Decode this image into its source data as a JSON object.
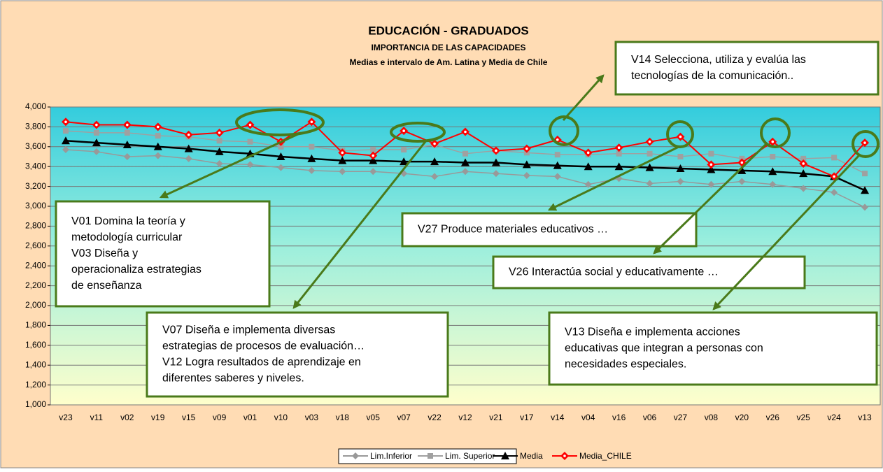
{
  "chart_data": {
    "type": "line",
    "title": "EDUCACIÓN  - GRADUADOS",
    "subtitle": "IMPORTANCIA DE LAS CAPACIDADES",
    "subtitle_2": "Medias e intervalo de Am. Latina y Media de Chile",
    "categories": [
      "v23",
      "v11",
      "v02",
      "v19",
      "v15",
      "v09",
      "v01",
      "v10",
      "v03",
      "v18",
      "v05",
      "v07",
      "v22",
      "v12",
      "v21",
      "v17",
      "v14",
      "v04",
      "v16",
      "v06",
      "v27",
      "v08",
      "v20",
      "v26",
      "v25",
      "v24",
      "v13"
    ],
    "ylim": [
      1000,
      4000
    ],
    "yticks": [
      {
        "value": 1000,
        "label": "1,000"
      },
      {
        "value": 1200,
        "label": "1,200"
      },
      {
        "value": 1400,
        "label": "1,400"
      },
      {
        "value": 1600,
        "label": "1,600"
      },
      {
        "value": 1800,
        "label": "1,800"
      },
      {
        "value": 2000,
        "label": "2,000"
      },
      {
        "value": 2200,
        "label": "2,200"
      },
      {
        "value": 2400,
        "label": "2,400"
      },
      {
        "value": 2600,
        "label": "2,600"
      },
      {
        "value": 2800,
        "label": "2,800"
      },
      {
        "value": 3000,
        "label": "3,000"
      },
      {
        "value": 3200,
        "label": "3,200"
      },
      {
        "value": 3400,
        "label": "3,400"
      },
      {
        "value": 3600,
        "label": "3,600"
      },
      {
        "value": 3800,
        "label": "3,800"
      },
      {
        "value": 4000,
        "label": "4,000"
      }
    ],
    "grid": true,
    "legend": "bottom",
    "series": [
      {
        "name": "Lim.Inferior",
        "color": "#999999",
        "marker": "diamond",
        "values": [
          3570,
          3550,
          3500,
          3510,
          3480,
          3430,
          3420,
          3390,
          3360,
          3350,
          3350,
          3330,
          3300,
          3350,
          3330,
          3310,
          3300,
          3220,
          3280,
          3230,
          3250,
          3220,
          3250,
          3220,
          3180,
          3140,
          2990
        ]
      },
      {
        "name": "Lim. Superior",
        "color": "#a0a0a0",
        "marker": "square",
        "values": [
          3760,
          3740,
          3740,
          3710,
          3700,
          3660,
          3650,
          3600,
          3600,
          3560,
          3570,
          3570,
          3620,
          3530,
          3560,
          3540,
          3520,
          3520,
          3530,
          3530,
          3500,
          3530,
          3480,
          3500,
          3480,
          3490,
          3330
        ]
      },
      {
        "name": "Media",
        "color": "#000000",
        "marker": "triangle",
        "values": [
          3660,
          3640,
          3620,
          3600,
          3580,
          3550,
          3530,
          3500,
          3480,
          3460,
          3460,
          3450,
          3450,
          3440,
          3440,
          3420,
          3410,
          3400,
          3400,
          3390,
          3380,
          3370,
          3360,
          3350,
          3330,
          3300,
          3160
        ]
      },
      {
        "name": "Media_CHILE",
        "color": "#ff0000",
        "marker": "diamond-open",
        "values": [
          3850,
          3820,
          3820,
          3800,
          3720,
          3740,
          3820,
          3650,
          3850,
          3540,
          3510,
          3760,
          3630,
          3750,
          3560,
          3580,
          3670,
          3540,
          3590,
          3650,
          3700,
          3420,
          3440,
          3650,
          3430,
          3300,
          3640
        ]
      }
    ],
    "annotations": [
      {
        "lines": [
          "V14 Selecciona, utiliza y evalúa  las",
          "tecnologías de la comunicación.."
        ]
      },
      {
        "lines": [
          "V01 Domina la teoría y",
          "metodología curricular",
          "V03 Diseña y",
          "operacionaliza estrategias",
          "de enseñanza"
        ]
      },
      {
        "lines": [
          "V07 Diseña e implementa diversas",
          "estrategias de procesos de evaluación…",
          "V12 Logra resultados de aprendizaje en",
          "diferentes saberes y niveles."
        ]
      },
      {
        "lines": [
          "V27 Produce materiales educativos …"
        ]
      },
      {
        "lines": [
          "V26 Interactúa social y educativamente …"
        ]
      },
      {
        "lines": [
          "V13 Diseña e implementa acciones",
          "educativas que integran a personas con",
          "necesidades especiales."
        ]
      }
    ]
  }
}
